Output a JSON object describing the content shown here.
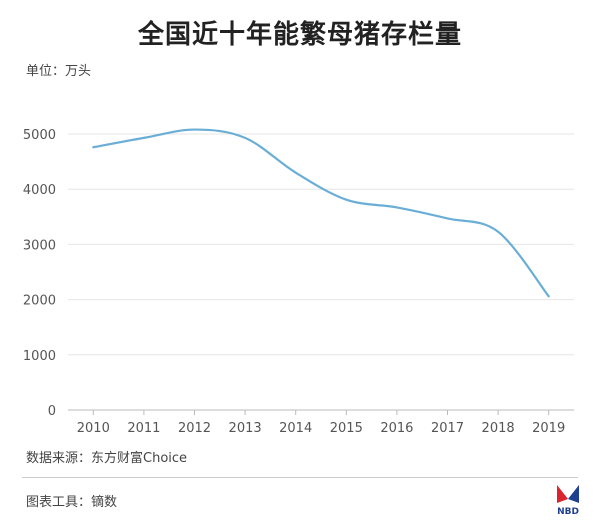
{
  "title": "全国近十年能繁母猪存栏量",
  "unit_label": "单位：万头",
  "source_label": "数据来源：东方财富Choice",
  "tool_label": "图表工具：镝数",
  "logo_text": "NBD",
  "colors": {
    "line": "#6aaed6",
    "grid": "#e6e6e6",
    "axis": "#bbbbbb",
    "logo_red": "#d9262e",
    "logo_blue": "#1f3f8f"
  },
  "chart_data": {
    "type": "line",
    "title": "全国近十年能繁母猪存栏量",
    "ylabel": "单位：万头",
    "xlabel": "",
    "x": [
      "2010",
      "2011",
      "2012",
      "2013",
      "2014",
      "2015",
      "2016",
      "2017",
      "2018",
      "2019"
    ],
    "series": [
      {
        "values": [
          4760,
          4930,
          5080,
          4930,
          4300,
          3810,
          3670,
          3470,
          3230,
          2060
        ]
      }
    ],
    "ylim": [
      0,
      5000
    ],
    "yticks": [
      0,
      1000,
      2000,
      3000,
      4000,
      5000
    ],
    "grid": true,
    "smooth": true
  }
}
